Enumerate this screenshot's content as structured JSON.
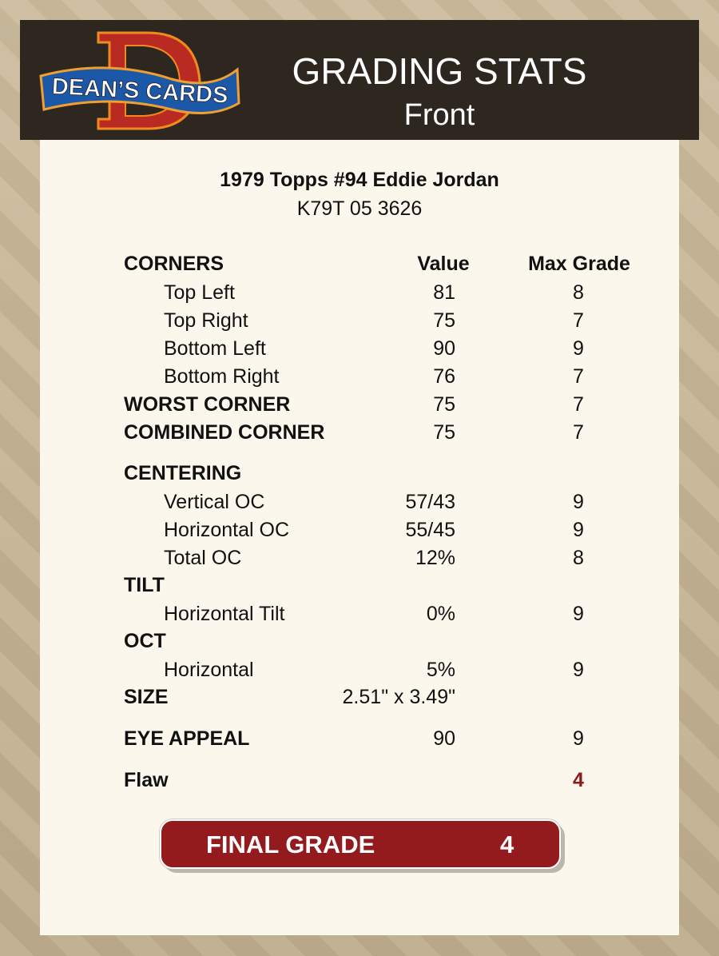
{
  "header": {
    "logo_text": "DEAN'S CARDS",
    "title": "GRADING STATS",
    "subtitle": "Front"
  },
  "card": {
    "name": "1979 Topps #94 Eddie Jordan",
    "cert": "K79T 05 3626"
  },
  "columns": {
    "value": "Value",
    "max": "Max Grade"
  },
  "corners": {
    "label": "CORNERS",
    "items": [
      {
        "label": "Top Left",
        "value": "81",
        "max": "8"
      },
      {
        "label": "Top Right",
        "value": "75",
        "max": "7"
      },
      {
        "label": "Bottom Left",
        "value": "90",
        "max": "9"
      },
      {
        "label": "Bottom Right",
        "value": "76",
        "max": "7"
      }
    ],
    "worst": {
      "label": "WORST CORNER",
      "value": "75",
      "max": "7"
    },
    "combined": {
      "label": "COMBINED CORNER",
      "value": "75",
      "max": "7"
    }
  },
  "centering": {
    "label": "CENTERING",
    "items": [
      {
        "label": "Vertical OC",
        "value": "57/43",
        "max": "9"
      },
      {
        "label": "Horizontal OC",
        "value": "55/45",
        "max": "9"
      },
      {
        "label": "Total OC",
        "value": "12%",
        "max": "8"
      }
    ]
  },
  "tilt": {
    "label": "TILT",
    "item": {
      "label": "Horizontal Tilt",
      "value": "0%",
      "max": "9"
    }
  },
  "oct": {
    "label": "OCT",
    "item": {
      "label": "Horizontal",
      "value": "5%",
      "max": "9"
    }
  },
  "size": {
    "label": "SIZE",
    "value": "2.51\" x 3.49\""
  },
  "eye_appeal": {
    "label": "EYE APPEAL",
    "value": "90",
    "max": "9"
  },
  "flaw": {
    "label": "Flaw",
    "max": "4",
    "color": "#8c1a1a"
  },
  "final": {
    "label": "FINAL GRADE",
    "value": "4",
    "color": "#931a1d"
  }
}
